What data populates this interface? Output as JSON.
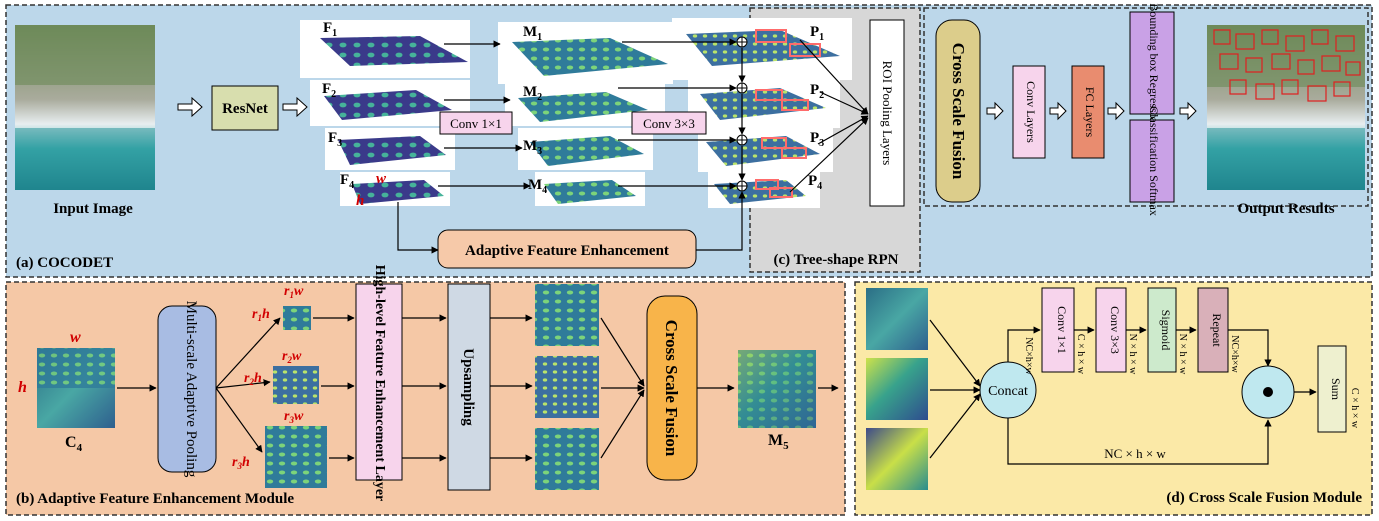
{
  "panels": {
    "a": {
      "caption": "(a) COCODET"
    },
    "b": {
      "caption": "(b) Adaptive Feature Enhancement Module"
    },
    "c": {
      "caption": "(c) Tree-shape RPN"
    },
    "d": {
      "caption": "(d) Cross Scale Fusion Module"
    }
  },
  "a": {
    "input_label": "Input Image",
    "output_label": "Output Results",
    "resnet": "ResNet",
    "F": [
      "F",
      "F",
      "F",
      "F"
    ],
    "F_sub": [
      "1",
      "2",
      "3",
      "4"
    ],
    "M": [
      "M",
      "M",
      "M",
      "M"
    ],
    "P": [
      "P",
      "P",
      "P",
      "P"
    ],
    "conv1": "Conv 1×1",
    "conv3": "Conv 3×3",
    "w": "w",
    "h": "h",
    "afe": "Adaptive Feature Enhancement",
    "roi": "ROI Pooling Layers",
    "csf": "Cross Scale Fusion",
    "conv_layers": "Conv Layers",
    "fc_layers": "FC Layers",
    "bbox": "Bounding box Regressor",
    "cls": "Classification Softmax"
  },
  "b": {
    "c4": "C",
    "c4_sub": "4",
    "w": "w",
    "h": "h",
    "pool": "Multi-scale Adaptive Pooling",
    "r1w": "r",
    "r_sub": [
      "1",
      "2",
      "3"
    ],
    "hl": "High-level Feature Enhancement Layer",
    "ups": "Upsampling",
    "csf": "Cross Scale Fusion",
    "m5": "M",
    "m5_sub": "5"
  },
  "d": {
    "concat": "Concat",
    "conv1": "Conv 1×1",
    "conv3": "Conv 3×3",
    "sigmoid": "Sigmoid",
    "repeat": "Repeat",
    "sum": "Sum",
    "dim_nc": "NC×h×w",
    "dim_c1": "C × h × w",
    "dim_n1": "N × h × w",
    "dim_n2": "N × h × w",
    "dim_nc2": "NC×h×w",
    "dim_out": "C × h × w",
    "dim_bottom": "NC × h × w"
  },
  "colors": {
    "panel_a": "#bcd7ea",
    "panel_b": "#f5c8a6",
    "panel_c": "#d7d7d7",
    "panel_d": "#fbe9a7",
    "resnet": "#d8deae",
    "afe": "#f6c9a9",
    "csf": "#dccd8b",
    "conv": "#f7d4ec",
    "fc": "#e98c6f",
    "purple": "#c9a1e6",
    "ups": "#cfd9e4",
    "pool": "#a8bce3",
    "sigmoid": "#cdeacc",
    "repeat": "#d9b0b9",
    "sum": "#eef0cf",
    "node": "#bfe8ef"
  }
}
